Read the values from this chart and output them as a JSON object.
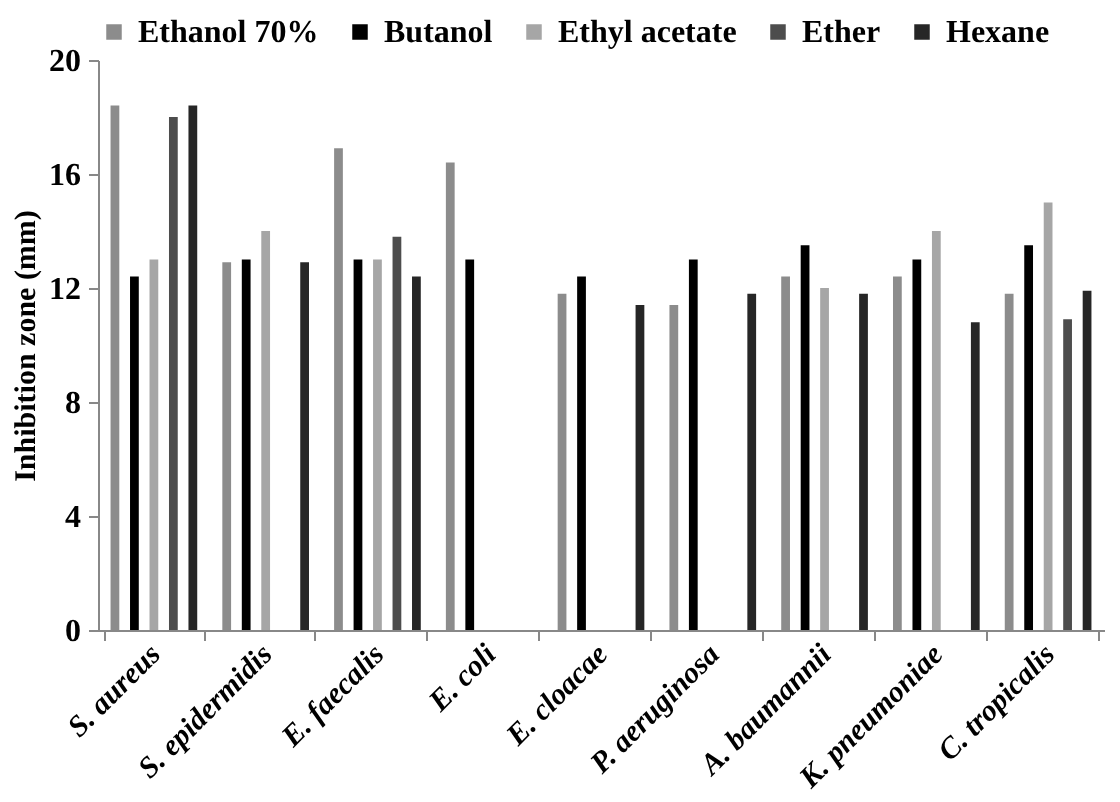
{
  "chart_data": {
    "type": "bar",
    "ylabel": "Inhibition  zone (mm)",
    "categories": [
      "S. aureus",
      "S. epidermidis",
      "E. faecalis",
      "E. coli",
      "E. cloacae",
      "P. aeruginosa",
      "A. baumannii",
      "K. pneumoniae",
      "C. tropicalis"
    ],
    "series": [
      {
        "name": "Ethanol 70%",
        "color": "#8c8c8c",
        "values": [
          18.4,
          12.9,
          16.9,
          16.4,
          11.8,
          11.4,
          12.4,
          12.4,
          11.8
        ]
      },
      {
        "name": "Butanol",
        "color": "#000000",
        "values": [
          12.4,
          13,
          13,
          13,
          12.4,
          13,
          13.5,
          13,
          13.5
        ]
      },
      {
        "name": "Ethyl acetate",
        "color": "#a6a6a6",
        "values": [
          13,
          14,
          13,
          null,
          null,
          null,
          12,
          14,
          15
        ]
      },
      {
        "name": "Ether",
        "color": "#4d4d4d",
        "values": [
          18,
          null,
          13.8,
          null,
          null,
          null,
          null,
          null,
          10.9
        ]
      },
      {
        "name": "Hexane",
        "color": "#262626",
        "values": [
          18.4,
          12.9,
          12.4,
          null,
          11.4,
          11.8,
          11.8,
          10.8,
          11.9
        ]
      }
    ],
    "ylim": [
      0,
      20
    ],
    "yticks": [
      0,
      4,
      8,
      12,
      16,
      20
    ],
    "grid": false,
    "legend": "top"
  }
}
